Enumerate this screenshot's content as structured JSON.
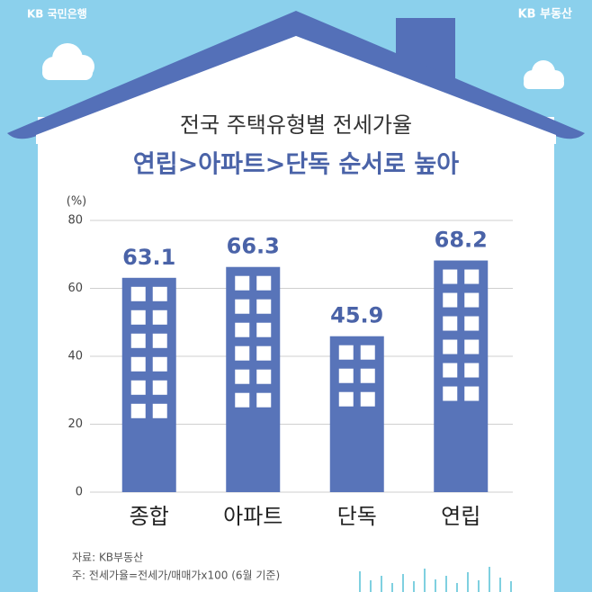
{
  "brand_left": "KB 국민은행",
  "brand_right": "KB 부동산",
  "chart_data": {
    "type": "bar",
    "title": "전국 주택유형별 전세가율",
    "subtitle": "연립>아파트>단독 순서로 높아",
    "y_label": "(%)",
    "categories": [
      "종합",
      "아파트",
      "단독",
      "연립"
    ],
    "values": [
      63.1,
      66.3,
      45.9,
      68.2
    ],
    "color": "#5874b9",
    "ylim": [
      0,
      80
    ],
    "yticks": [
      0,
      20,
      40,
      60,
      80
    ],
    "grid": true
  },
  "footnotes": [
    "자료: KB부동산",
    "주: 전세가율=전세가/매매가x100 (6월 기준)"
  ]
}
